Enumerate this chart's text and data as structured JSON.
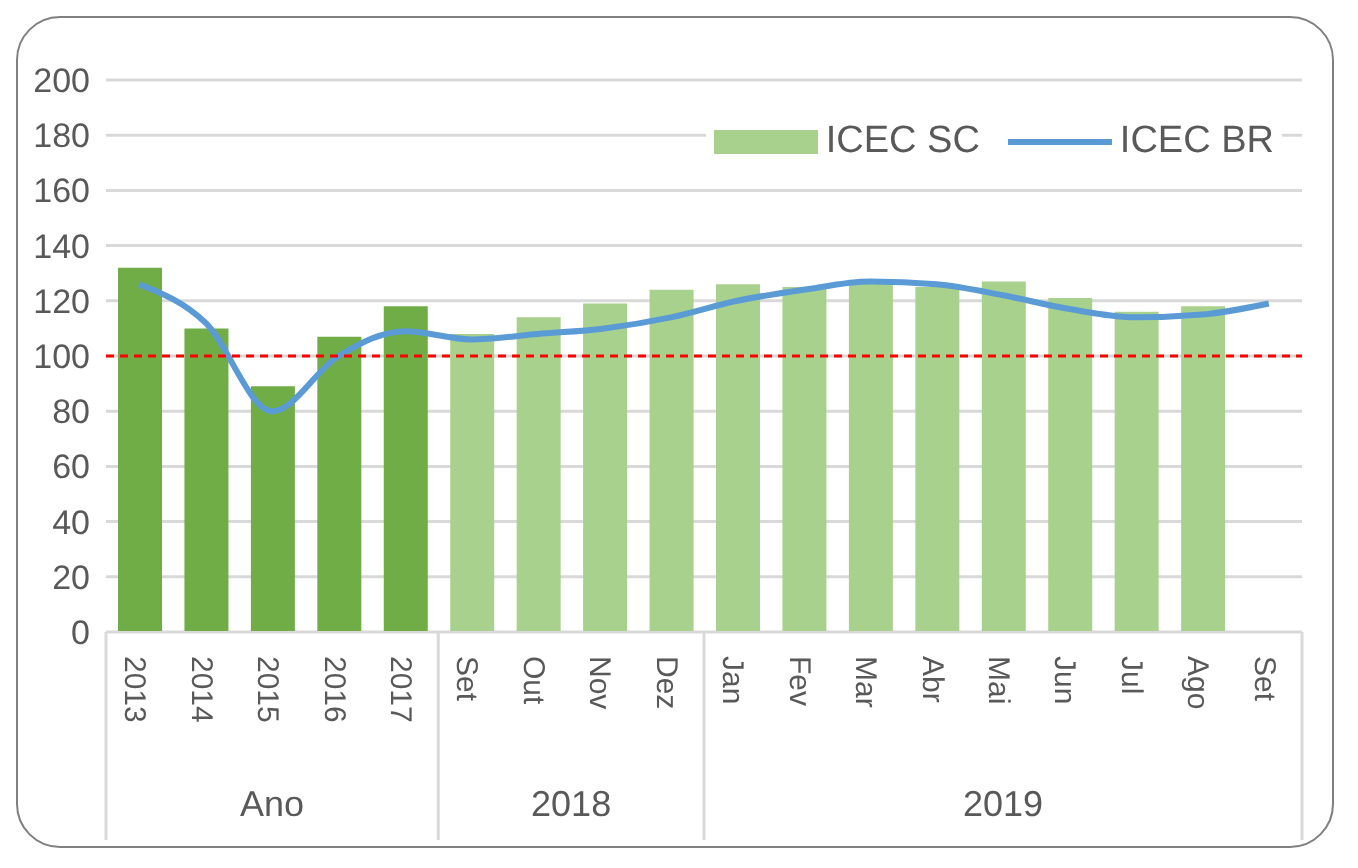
{
  "chart_data": {
    "type": "bar",
    "categories": [
      "2013",
      "2014",
      "2015",
      "2016",
      "2017",
      "Set",
      "Out",
      "Nov",
      "Dez",
      "Jan",
      "Fev",
      "Mar",
      "Abr",
      "Mai",
      "Jun",
      "Jul",
      "Ago",
      "Set"
    ],
    "series": [
      {
        "name": "ICEC SC",
        "color": "#a9d18e",
        "colors": [
          "#70ad47",
          "#70ad47",
          "#70ad47",
          "#70ad47",
          "#70ad47",
          "#a9d18e",
          "#a9d18e",
          "#a9d18e",
          "#a9d18e",
          "#a9d18e",
          "#a9d18e",
          "#a9d18e",
          "#a9d18e",
          "#a9d18e",
          "#a9d18e",
          "#a9d18e",
          "#a9d18e",
          "#a9d18e"
        ],
        "values": [
          132,
          110,
          89,
          107,
          118,
          108,
          114,
          119,
          124,
          126,
          125,
          127,
          125,
          127,
          121,
          116,
          118,
          null
        ]
      },
      {
        "name": "ICEC BR",
        "type": "line",
        "color": "#5b9bd5",
        "values": [
          126,
          112,
          80,
          100,
          109,
          106,
          108,
          110,
          114,
          120,
          124,
          127,
          126,
          122,
          117,
          114,
          115,
          119
        ]
      }
    ],
    "ylim": [
      0,
      200
    ],
    "yticks": [
      0,
      20,
      40,
      60,
      80,
      100,
      120,
      140,
      160,
      180,
      200
    ],
    "grid": "y",
    "legend": "top right",
    "ref_lines": [
      {
        "axis": "y",
        "value": 100,
        "color": "#ff0000",
        "line_style": "dashed"
      }
    ],
    "annotations": [
      "Ano",
      "2018",
      "2019"
    ]
  }
}
